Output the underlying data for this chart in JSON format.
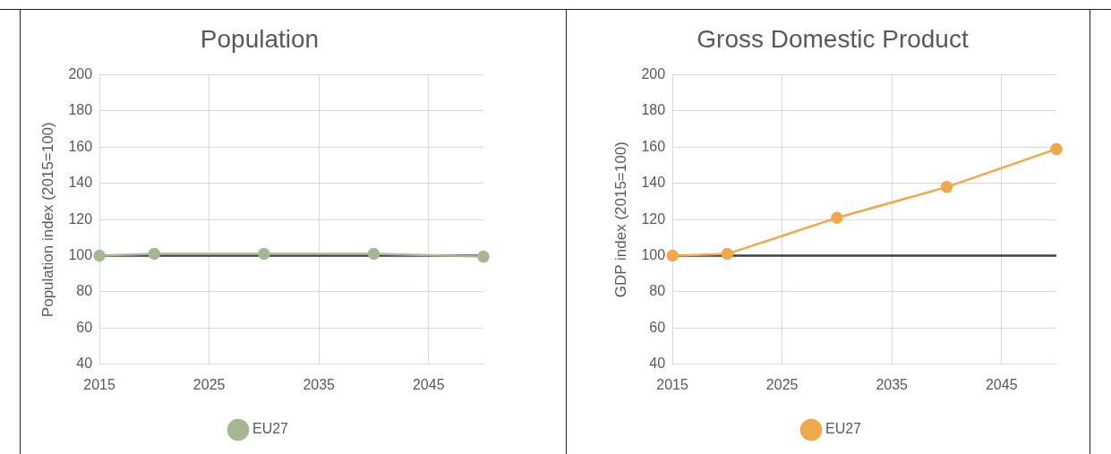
{
  "chart_data": [
    {
      "type": "line",
      "title": "Population",
      "ylabel": "Population index (2015=100)",
      "x": [
        2015,
        2020,
        2030,
        2040,
        2050
      ],
      "xlim": [
        2015,
        2050
      ],
      "xticks": [
        2015,
        2025,
        2035,
        2045
      ],
      "ylim": [
        40,
        200
      ],
      "yticks": [
        40,
        60,
        80,
        100,
        120,
        140,
        160,
        180,
        200
      ],
      "grid": true,
      "legend": "bottom",
      "marker": "circle",
      "ref_lines": [
        {
          "axis": "y",
          "value": 100,
          "color": "#404040"
        }
      ],
      "series": [
        {
          "name": "EU27",
          "color": "#a4b792",
          "values": [
            100,
            101,
            101,
            101,
            99.5
          ]
        }
      ]
    },
    {
      "type": "line",
      "title": "Gross Domestic Product",
      "ylabel": "GDP index (2015=100)",
      "x": [
        2015,
        2020,
        2030,
        2040,
        2050
      ],
      "xlim": [
        2015,
        2050
      ],
      "xticks": [
        2015,
        2025,
        2035,
        2045
      ],
      "ylim": [
        40,
        200
      ],
      "yticks": [
        40,
        60,
        80,
        100,
        120,
        140,
        160,
        180,
        200
      ],
      "grid": true,
      "legend": "bottom",
      "marker": "circle",
      "ref_lines": [
        {
          "axis": "y",
          "value": 100,
          "color": "#404040"
        }
      ],
      "series": [
        {
          "name": "EU27",
          "color": "#f0a84a",
          "values": [
            100,
            101,
            121,
            138,
            159
          ]
        }
      ]
    }
  ]
}
